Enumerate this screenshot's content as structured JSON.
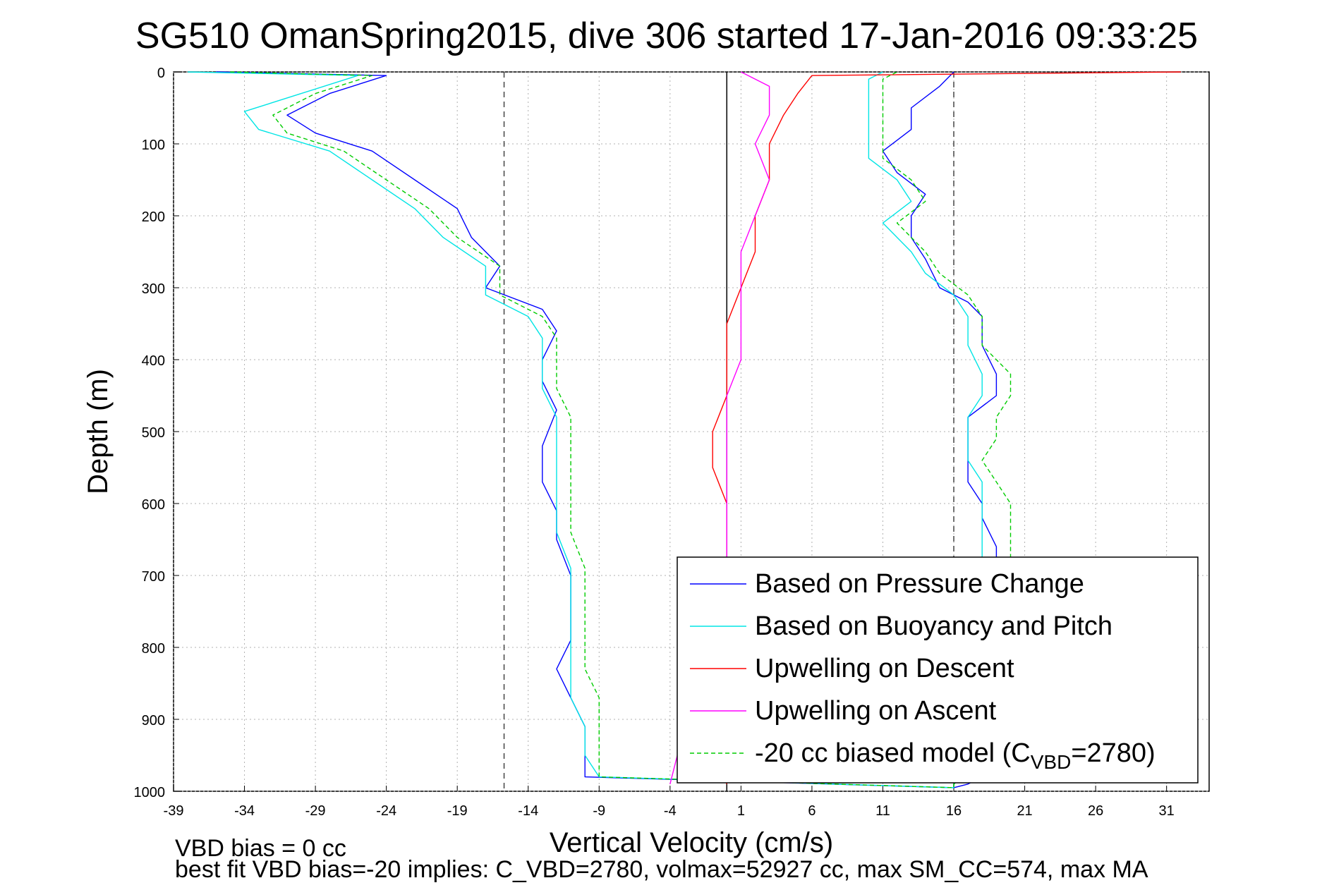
{
  "chart_data": {
    "type": "line",
    "title": "SG510 OmanSpring2015, dive 306 started 17-Jan-2016 09:33:25",
    "xlabel": "Vertical Velocity (cm/s)",
    "ylabel": "Depth (m)",
    "xlim": [
      -39,
      34
    ],
    "ylim": [
      0,
      1000
    ],
    "y_reversed": true,
    "x_ticks": [
      -39,
      -34,
      -29,
      -24,
      -19,
      -14,
      -9,
      -4,
      1,
      6,
      11,
      16,
      21,
      26,
      31
    ],
    "y_ticks": [
      0,
      100,
      200,
      300,
      400,
      500,
      600,
      700,
      800,
      900,
      1000
    ],
    "grid": true,
    "legend_position": "bottom-right",
    "reference_lines": [
      {
        "x": -15.7,
        "style": "dashed",
        "color": "#444444"
      },
      {
        "x": 0,
        "style": "solid",
        "color": "#000000"
      },
      {
        "x": 16,
        "style": "dashed",
        "color": "#444444"
      }
    ],
    "series": [
      {
        "name": "Based on Pressure Change",
        "color": "#0000ff",
        "style": "solid",
        "points": [
          [
            -36,
            0
          ],
          [
            -24,
            5
          ],
          [
            -28,
            30
          ],
          [
            -31,
            60
          ],
          [
            -29,
            85
          ],
          [
            -25,
            110
          ],
          [
            -22,
            150
          ],
          [
            -19,
            190
          ],
          [
            -18,
            230
          ],
          [
            -16,
            270
          ],
          [
            -17,
            300
          ],
          [
            -13,
            330
          ],
          [
            -12,
            360
          ],
          [
            -13,
            400
          ],
          [
            -13,
            430
          ],
          [
            -12,
            470
          ],
          [
            -13,
            520
          ],
          [
            -13,
            570
          ],
          [
            -12,
            610
          ],
          [
            -12,
            650
          ],
          [
            -11,
            700
          ],
          [
            -11,
            750
          ],
          [
            -11,
            790
          ],
          [
            -12,
            830
          ],
          [
            -11,
            870
          ],
          [
            -10,
            910
          ],
          [
            -10,
            940
          ],
          [
            -10,
            980
          ],
          [
            16,
            995
          ],
          [
            17,
            990
          ],
          [
            19,
            970
          ],
          [
            19,
            930
          ],
          [
            19,
            900
          ],
          [
            19,
            860
          ],
          [
            19,
            820
          ],
          [
            19,
            780
          ],
          [
            19,
            740
          ],
          [
            19,
            700
          ],
          [
            19,
            660
          ],
          [
            18,
            620
          ],
          [
            18,
            600
          ],
          [
            17,
            570
          ],
          [
            17,
            540
          ],
          [
            17,
            510
          ],
          [
            17,
            480
          ],
          [
            19,
            450
          ],
          [
            19,
            420
          ],
          [
            18,
            380
          ],
          [
            18,
            340
          ],
          [
            17,
            320
          ],
          [
            15,
            300
          ],
          [
            14,
            260
          ],
          [
            13,
            230
          ],
          [
            13,
            200
          ],
          [
            14,
            170
          ],
          [
            12,
            140
          ],
          [
            11,
            110
          ],
          [
            13,
            80
          ],
          [
            13,
            50
          ],
          [
            15,
            20
          ],
          [
            16,
            0
          ]
        ]
      },
      {
        "name": "Based on Buoyancy and Pitch",
        "color": "#00e5e5",
        "style": "solid",
        "points": [
          [
            -38,
            0
          ],
          [
            -26,
            5
          ],
          [
            -30,
            30
          ],
          [
            -34,
            55
          ],
          [
            -33,
            80
          ],
          [
            -28,
            110
          ],
          [
            -25,
            150
          ],
          [
            -22,
            190
          ],
          [
            -20,
            230
          ],
          [
            -17,
            270
          ],
          [
            -17,
            310
          ],
          [
            -14,
            340
          ],
          [
            -13,
            370
          ],
          [
            -13,
            410
          ],
          [
            -13,
            440
          ],
          [
            -12,
            480
          ],
          [
            -12,
            520
          ],
          [
            -12,
            560
          ],
          [
            -12,
            600
          ],
          [
            -12,
            640
          ],
          [
            -11,
            690
          ],
          [
            -11,
            740
          ],
          [
            -11,
            790
          ],
          [
            -11,
            830
          ],
          [
            -11,
            870
          ],
          [
            -10,
            910
          ],
          [
            -10,
            950
          ],
          [
            -9,
            980
          ],
          [
            16,
            995
          ],
          [
            16,
            990
          ],
          [
            18,
            960
          ],
          [
            18,
            920
          ],
          [
            18,
            880
          ],
          [
            18,
            840
          ],
          [
            18,
            800
          ],
          [
            18,
            760
          ],
          [
            18,
            720
          ],
          [
            18,
            690
          ],
          [
            18,
            660
          ],
          [
            18,
            630
          ],
          [
            18,
            600
          ],
          [
            18,
            570
          ],
          [
            17,
            540
          ],
          [
            17,
            510
          ],
          [
            17,
            480
          ],
          [
            18,
            450
          ],
          [
            18,
            420
          ],
          [
            17,
            380
          ],
          [
            17,
            340
          ],
          [
            16,
            310
          ],
          [
            14,
            280
          ],
          [
            13,
            250
          ],
          [
            11,
            210
          ],
          [
            13,
            180
          ],
          [
            12,
            150
          ],
          [
            10,
            120
          ],
          [
            10,
            90
          ],
          [
            10,
            50
          ],
          [
            10,
            10
          ],
          [
            11,
            0
          ]
        ]
      },
      {
        "name": "Upwelling on Descent",
        "color": "#ff0000",
        "style": "solid",
        "points": [
          [
            32,
            0
          ],
          [
            6,
            5
          ],
          [
            5,
            30
          ],
          [
            4,
            60
          ],
          [
            3,
            100
          ],
          [
            3,
            150
          ],
          [
            2,
            200
          ],
          [
            2,
            250
          ],
          [
            1,
            300
          ],
          [
            0,
            350
          ],
          [
            0,
            400
          ],
          [
            0,
            450
          ],
          [
            -1,
            500
          ],
          [
            -1,
            550
          ],
          [
            0,
            600
          ],
          [
            0,
            650
          ],
          [
            0,
            680
          ],
          [
            -1,
            945
          ],
          [
            0,
            990
          ]
        ]
      },
      {
        "name": "Upwelling on Ascent",
        "color": "#ff00ff",
        "style": "solid",
        "points": [
          [
            1,
            0
          ],
          [
            3,
            20
          ],
          [
            3,
            60
          ],
          [
            2,
            100
          ],
          [
            3,
            150
          ],
          [
            2,
            200
          ],
          [
            1,
            250
          ],
          [
            1,
            300
          ],
          [
            1,
            350
          ],
          [
            1,
            400
          ],
          [
            0,
            450
          ],
          [
            0,
            500
          ],
          [
            0,
            550
          ],
          [
            0,
            600
          ],
          [
            0,
            650
          ],
          [
            0,
            680
          ],
          [
            -4,
            990
          ]
        ]
      },
      {
        "name": "-20 cc biased model (C",
        "name_sub": "VBD",
        "name_suffix": "=2780)",
        "color": "#00cc00",
        "style": "dashed",
        "points": [
          [
            -35,
            0
          ],
          [
            -25,
            5
          ],
          [
            -29,
            30
          ],
          [
            -32,
            60
          ],
          [
            -31,
            85
          ],
          [
            -27,
            110
          ],
          [
            -24,
            150
          ],
          [
            -21,
            190
          ],
          [
            -19,
            230
          ],
          [
            -16,
            270
          ],
          [
            -16,
            310
          ],
          [
            -13,
            340
          ],
          [
            -12,
            370
          ],
          [
            -12,
            410
          ],
          [
            -12,
            440
          ],
          [
            -11,
            480
          ],
          [
            -11,
            520
          ],
          [
            -11,
            560
          ],
          [
            -11,
            600
          ],
          [
            -11,
            640
          ],
          [
            -10,
            690
          ],
          [
            -10,
            740
          ],
          [
            -10,
            790
          ],
          [
            -10,
            830
          ],
          [
            -9,
            870
          ],
          [
            -9,
            910
          ],
          [
            -9,
            950
          ],
          [
            -9,
            980
          ],
          [
            16,
            995
          ],
          [
            16,
            990
          ],
          [
            20,
            960
          ],
          [
            20,
            920
          ],
          [
            20,
            880
          ],
          [
            20,
            840
          ],
          [
            20,
            800
          ],
          [
            20,
            760
          ],
          [
            20,
            720
          ],
          [
            20,
            690
          ],
          [
            20,
            660
          ],
          [
            20,
            630
          ],
          [
            20,
            600
          ],
          [
            19,
            570
          ],
          [
            18,
            540
          ],
          [
            19,
            510
          ],
          [
            19,
            480
          ],
          [
            20,
            450
          ],
          [
            20,
            420
          ],
          [
            18,
            380
          ],
          [
            18,
            340
          ],
          [
            17,
            310
          ],
          [
            15,
            280
          ],
          [
            14,
            250
          ],
          [
            12,
            210
          ],
          [
            14,
            180
          ],
          [
            13,
            150
          ],
          [
            11,
            120
          ],
          [
            11,
            90
          ],
          [
            11,
            50
          ],
          [
            11,
            10
          ],
          [
            12,
            0
          ]
        ]
      }
    ],
    "annotations": [
      "VBD bias = 0 cc",
      "best fit VBD bias=-20 implies: C_VBD=2780, volmax=52927 cc, max SM_CC=574, max MA"
    ]
  }
}
